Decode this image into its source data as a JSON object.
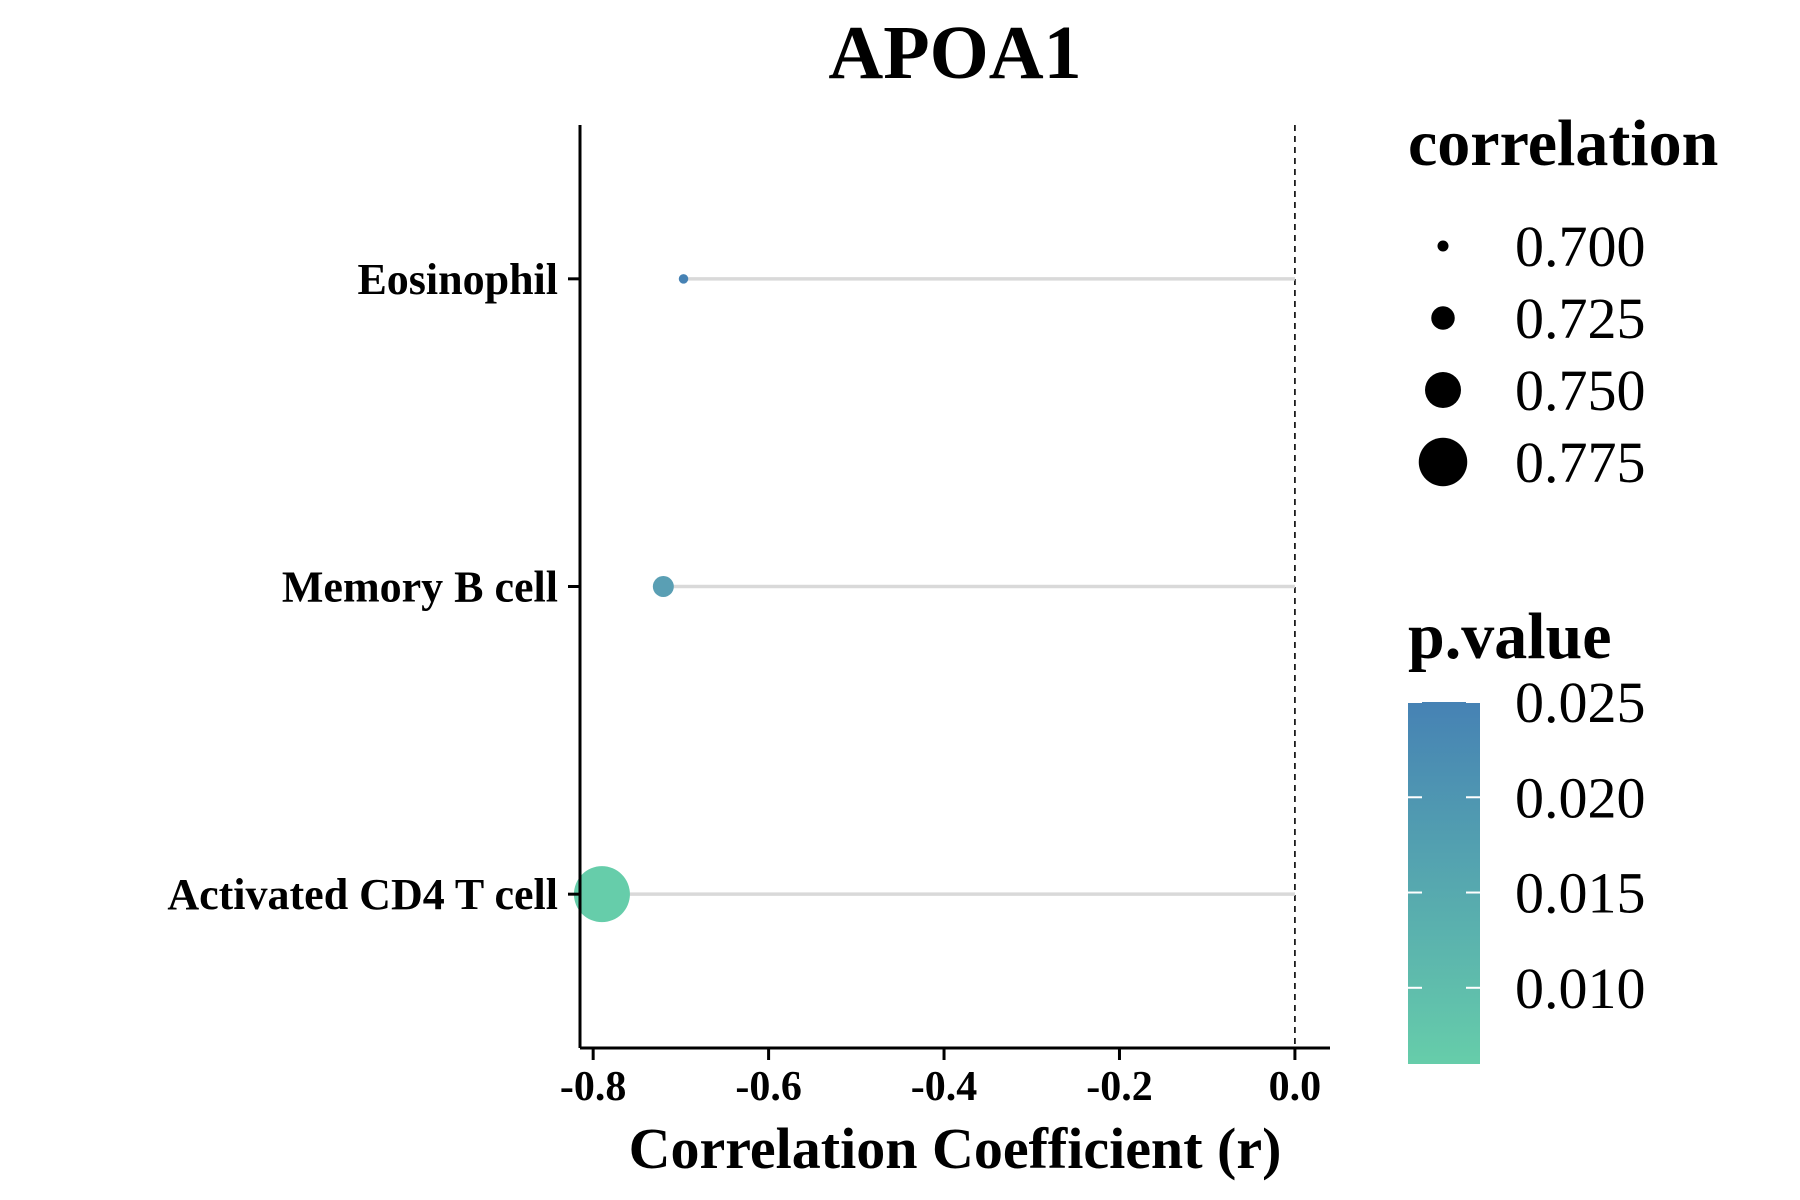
{
  "chart_data": {
    "type": "lollipop",
    "title": "APOA1",
    "xlabel": "Correlation Coefficient (r)",
    "ylabel": "",
    "xlim": [
      -0.815,
      0.04
    ],
    "x_ticks": [
      "-0.8",
      "-0.6",
      "-0.4",
      "-0.2",
      "0.0"
    ],
    "reference_line": 0.0,
    "categories": [
      "Eosinophil",
      "Memory B cell",
      "Activated CD4 T cell"
    ],
    "points": [
      {
        "category": "Eosinophil",
        "r": -0.697,
        "correlation": 0.697,
        "p_value": 0.025,
        "color": "#4682B4"
      },
      {
        "category": "Memory B cell",
        "r": -0.72,
        "correlation": 0.72,
        "p_value": 0.018,
        "color": "#5A9FB4"
      },
      {
        "category": "Activated CD4 T cell",
        "r": -0.79,
        "correlation": 0.79,
        "p_value": 0.006,
        "color": "#66CDAA"
      }
    ],
    "size_legend": {
      "title": "correlation",
      "entries": [
        {
          "label": "0.700",
          "value": 0.7
        },
        {
          "label": "0.725",
          "value": 0.725
        },
        {
          "label": "0.750",
          "value": 0.75
        },
        {
          "label": "0.775",
          "value": 0.775
        }
      ]
    },
    "color_legend": {
      "title": "p.value",
      "low_color": "#66CDAA",
      "high_color": "#4682B4",
      "range": [
        0.006,
        0.025
      ],
      "ticks": [
        {
          "label": "0.025",
          "value": 0.025
        },
        {
          "label": "0.020",
          "value": 0.02
        },
        {
          "label": "0.015",
          "value": 0.015
        },
        {
          "label": "0.010",
          "value": 0.01
        }
      ]
    },
    "grid": false,
    "legend_position": "right",
    "segment_color": "#D9D9D9"
  }
}
